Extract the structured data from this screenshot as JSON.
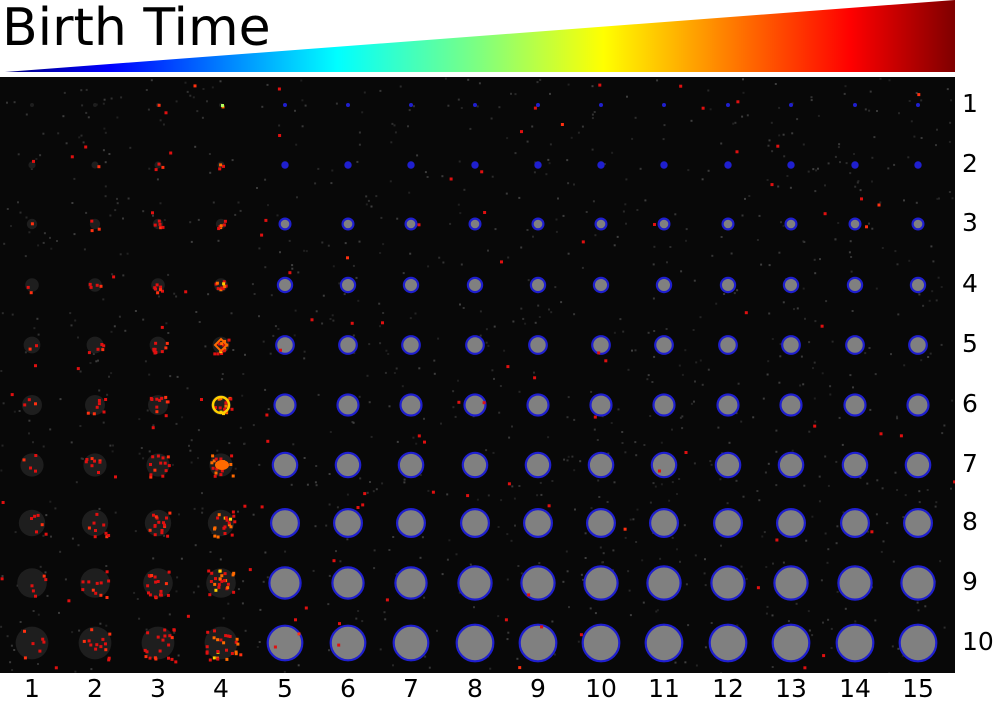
{
  "title": "Birth Time",
  "colormap": {
    "name": "jet",
    "stops": [
      "#00007f",
      "#0000ff",
      "#00ffff",
      "#7fff7f",
      "#ffff00",
      "#ff0000",
      "#7f0000"
    ]
  },
  "grid": {
    "row_labels": [
      "1",
      "2",
      "3",
      "4",
      "5",
      "6",
      "7",
      "8",
      "9",
      "10"
    ],
    "column_labels": [
      "1",
      "2",
      "3",
      "4",
      "5",
      "6",
      "7",
      "8",
      "9",
      "10",
      "11",
      "12",
      "13",
      "14",
      "15"
    ],
    "background_color": "#080808",
    "cell_body_color": "#808080",
    "outline_color": "#1f1fcf",
    "early_columns_scatter_colors": [
      "#e01010",
      "#ff3010",
      "#ff6a00",
      "#ffd000",
      "#b0ff60"
    ]
  }
}
